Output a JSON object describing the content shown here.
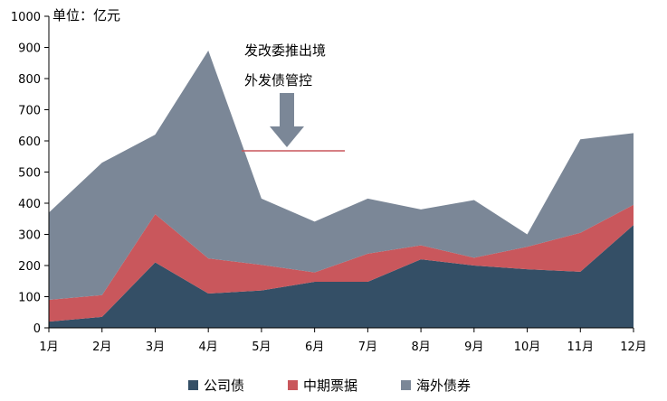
{
  "chart_data": {
    "type": "area",
    "stacked": true,
    "categories": [
      "1月",
      "2月",
      "3月",
      "4月",
      "5月",
      "6月",
      "7月",
      "8月",
      "9月",
      "10月",
      "11月",
      "12月"
    ],
    "series": [
      {
        "name": "公司债",
        "color": "#344f66",
        "values": [
          20,
          35,
          210,
          110,
          120,
          148,
          148,
          220,
          200,
          188,
          180,
          330
        ]
      },
      {
        "name": "中期票据",
        "color": "#c9575c",
        "values": [
          70,
          70,
          155,
          113,
          82,
          30,
          90,
          45,
          25,
          72,
          125,
          65
        ]
      },
      {
        "name": "海外债券",
        "color": "#7b8797",
        "values": [
          280,
          425,
          255,
          667,
          213,
          163,
          177,
          115,
          185,
          40,
          300,
          230
        ]
      }
    ],
    "unit_label": "单位：亿元",
    "ylim": [
      0,
      1000
    ],
    "yticks": [
      0,
      100,
      200,
      300,
      400,
      500,
      600,
      700,
      800,
      900,
      1000
    ],
    "grid": false,
    "legend_position": "bottom",
    "annotation": {
      "lines": [
        "发改委推出境",
        "外发债管控"
      ],
      "arrow_at": "5月-6月",
      "line_value": 568
    }
  }
}
